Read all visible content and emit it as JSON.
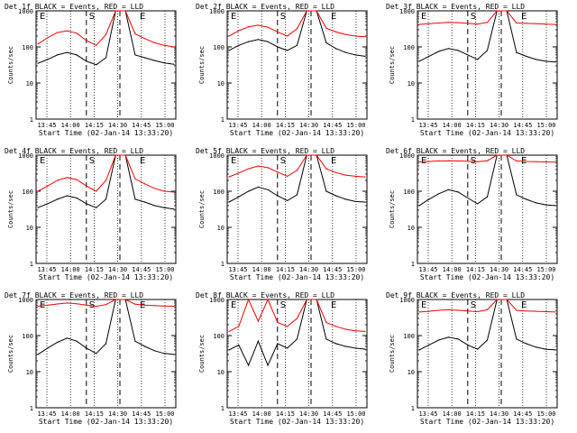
{
  "chart_data": [
    {
      "type": "line",
      "title": "Det 1f BLACK = Events, RED = LLD",
      "ylabel": "Counts/sec",
      "xlabel": "Start Time (02-Jan-14 13:33:20)",
      "xticks": [
        "13:45",
        "14:00",
        "14:15",
        "14:30",
        "14:45",
        "15:00"
      ],
      "yticks": [
        "1",
        "10",
        "100",
        "1000"
      ],
      "ylim": [
        1,
        1000
      ],
      "markers": [
        "E",
        "S",
        "E"
      ],
      "series": [
        {
          "name": "Events",
          "color": "#000000",
          "values": [
            35,
            45,
            60,
            70,
            60,
            40,
            32,
            50,
            1000,
            1000,
            60,
            50,
            42,
            36,
            33
          ]
        },
        {
          "name": "LLD",
          "color": "#ff0000",
          "values": [
            120,
            180,
            250,
            280,
            240,
            150,
            110,
            220,
            1000,
            1000,
            230,
            170,
            130,
            110,
            100
          ]
        }
      ]
    },
    {
      "type": "line",
      "title": "Det 2f BLACK = Events, RED = LLD",
      "ylabel": "Counts/sec",
      "xlabel": "Start Time (02-Jan-14 13:33:20)",
      "xticks": [
        "13:45",
        "14:00",
        "14:15",
        "14:30",
        "14:45",
        "15:00"
      ],
      "yticks": [
        "1",
        "10",
        "100",
        "1000"
      ],
      "ylim": [
        1,
        1000
      ],
      "markers": [
        "E",
        "S",
        "E"
      ],
      "series": [
        {
          "name": "Events",
          "color": "#000000",
          "values": [
            80,
            110,
            140,
            160,
            140,
            100,
            80,
            110,
            1000,
            1000,
            130,
            90,
            70,
            60,
            55
          ]
        },
        {
          "name": "LLD",
          "color": "#ff0000",
          "values": [
            200,
            280,
            360,
            400,
            350,
            260,
            200,
            320,
            1000,
            1000,
            330,
            260,
            220,
            200,
            190
          ]
        }
      ]
    },
    {
      "type": "line",
      "title": "Det 3f BLACK = Events, RED = LLD",
      "ylabel": "Counts/sec",
      "xlabel": "Start Time (02-Jan-14 13:33:20)",
      "xticks": [
        "13:45",
        "14:00",
        "14:15",
        "14:30",
        "14:45",
        "15:00"
      ],
      "yticks": [
        "1",
        "10",
        "100",
        "1000"
      ],
      "ylim": [
        1,
        1000
      ],
      "markers": [
        "E",
        "S",
        "E"
      ],
      "series": [
        {
          "name": "Events",
          "color": "#000000",
          "values": [
            40,
            55,
            75,
            90,
            80,
            60,
            45,
            80,
            1000,
            1000,
            70,
            55,
            45,
            40,
            38
          ]
        },
        {
          "name": "LLD",
          "color": "#ff0000",
          "values": [
            420,
            440,
            460,
            480,
            470,
            450,
            430,
            480,
            1000,
            1000,
            460,
            450,
            440,
            430,
            420
          ]
        }
      ]
    },
    {
      "type": "line",
      "title": "Det 4f BLACK = Events, RED = LLD",
      "ylabel": "Counts/sec",
      "xlabel": "Start Time (02-Jan-14 13:33:20)",
      "xticks": [
        "13:45",
        "14:00",
        "14:15",
        "14:30",
        "14:45",
        "15:00"
      ],
      "yticks": [
        "1",
        "10",
        "100",
        "1000"
      ],
      "ylim": [
        1,
        1000
      ],
      "markers": [
        "E",
        "S",
        "E"
      ],
      "series": [
        {
          "name": "Events",
          "color": "#000000",
          "values": [
            35,
            45,
            60,
            75,
            65,
            45,
            35,
            60,
            1000,
            1000,
            60,
            50,
            40,
            35,
            32
          ]
        },
        {
          "name": "LLD",
          "color": "#ff0000",
          "values": [
            100,
            140,
            200,
            240,
            210,
            140,
            100,
            200,
            1000,
            1000,
            220,
            160,
            120,
            100,
            95
          ]
        }
      ]
    },
    {
      "type": "line",
      "title": "Det 5f BLACK = Events, RED = LLD",
      "ylabel": "Counts/sec",
      "xlabel": "Start Time (02-Jan-14 13:33:20)",
      "xticks": [
        "13:45",
        "14:00",
        "14:15",
        "14:30",
        "14:45",
        "15:00"
      ],
      "yticks": [
        "1",
        "10",
        "100",
        "1000"
      ],
      "ylim": [
        1,
        1000
      ],
      "markers": [
        "E",
        "S",
        "E"
      ],
      "series": [
        {
          "name": "Events",
          "color": "#000000",
          "values": [
            50,
            70,
            100,
            130,
            110,
            75,
            55,
            80,
            1000,
            1000,
            100,
            75,
            60,
            52,
            50
          ]
        },
        {
          "name": "LLD",
          "color": "#ff0000",
          "values": [
            250,
            320,
            420,
            500,
            450,
            340,
            260,
            380,
            1000,
            1000,
            420,
            330,
            280,
            260,
            250
          ]
        }
      ]
    },
    {
      "type": "line",
      "title": "Det 6f BLACK = Events, RED = LLD",
      "ylabel": "Counts/sec",
      "xlabel": "Start Time (02-Jan-14 13:33:20)",
      "xticks": [
        "13:45",
        "14:00",
        "14:15",
        "14:30",
        "14:45",
        "15:00"
      ],
      "yticks": [
        "1",
        "10",
        "100",
        "1000"
      ],
      "ylim": [
        1,
        1000
      ],
      "markers": [
        "E",
        "S",
        "E"
      ],
      "series": [
        {
          "name": "Events",
          "color": "#000000",
          "values": [
            40,
            60,
            85,
            110,
            95,
            65,
            45,
            70,
            1000,
            1000,
            80,
            60,
            48,
            42,
            40
          ]
        },
        {
          "name": "LLD",
          "color": "#ff0000",
          "values": [
            650,
            670,
            690,
            700,
            690,
            680,
            660,
            700,
            1000,
            1000,
            690,
            670,
            660,
            650,
            640
          ]
        }
      ]
    },
    {
      "type": "line",
      "title": "Det 7f BLACK = Events, RED = LLD",
      "ylabel": "Counts/sec",
      "xlabel": "Start Time (02-Jan-14 13:33:20)",
      "xticks": [
        "13:45",
        "14:00",
        "14:15",
        "14:30",
        "14:45",
        "15:00"
      ],
      "yticks": [
        "1",
        "10",
        "100",
        "1000"
      ],
      "ylim": [
        1,
        1000
      ],
      "markers": [
        "E",
        "S",
        "E"
      ],
      "series": [
        {
          "name": "Events",
          "color": "#000000",
          "values": [
            30,
            45,
            65,
            85,
            70,
            45,
            32,
            60,
            1000,
            1000,
            70,
            50,
            38,
            32,
            30
          ]
        },
        {
          "name": "LLD",
          "color": "#ff0000",
          "values": [
            650,
            700,
            750,
            800,
            760,
            700,
            650,
            720,
            1000,
            1000,
            740,
            700,
            680,
            660,
            650
          ]
        }
      ]
    },
    {
      "type": "line",
      "title": "Det 8f BLACK = Events, RED = LLD",
      "ylabel": "Counts/sec",
      "xlabel": "Start Time (02-Jan-14 13:33:20)",
      "xticks": [
        "13:45",
        "14:00",
        "14:15",
        "14:30",
        "14:45",
        "15:00"
      ],
      "yticks": [
        "1",
        "10",
        "100",
        "1000"
      ],
      "ylim": [
        1,
        1000
      ],
      "markers": [
        "E",
        "S",
        "E"
      ],
      "series": [
        {
          "name": "Events",
          "color": "#000000",
          "values": [
            40,
            55,
            15,
            70,
            15,
            60,
            45,
            80,
            1000,
            1000,
            80,
            60,
            50,
            45,
            42
          ]
        },
        {
          "name": "LLD",
          "color": "#ff0000",
          "values": [
            130,
            180,
            1000,
            250,
            1000,
            230,
            180,
            300,
            1000,
            1000,
            230,
            180,
            150,
            135,
            130
          ]
        }
      ]
    },
    {
      "type": "line",
      "title": "Det 9f BLACK = Events, RED = LLD",
      "ylabel": "Counts/sec",
      "xlabel": "Start Time (02-Jan-14 13:33:20)",
      "xticks": [
        "13:45",
        "14:00",
        "14:15",
        "14:30",
        "14:45",
        "15:00"
      ],
      "yticks": [
        "1",
        "10",
        "100",
        "1000"
      ],
      "ylim": [
        1,
        1000
      ],
      "markers": [
        "E",
        "S",
        "E"
      ],
      "series": [
        {
          "name": "Events",
          "color": "#000000",
          "values": [
            40,
            55,
            75,
            90,
            80,
            55,
            42,
            75,
            1000,
            1000,
            80,
            60,
            48,
            42,
            40
          ]
        },
        {
          "name": "LLD",
          "color": "#ff0000",
          "values": [
            450,
            470,
            500,
            520,
            500,
            480,
            460,
            520,
            1000,
            1000,
            500,
            480,
            470,
            460,
            450
          ]
        }
      ]
    }
  ]
}
